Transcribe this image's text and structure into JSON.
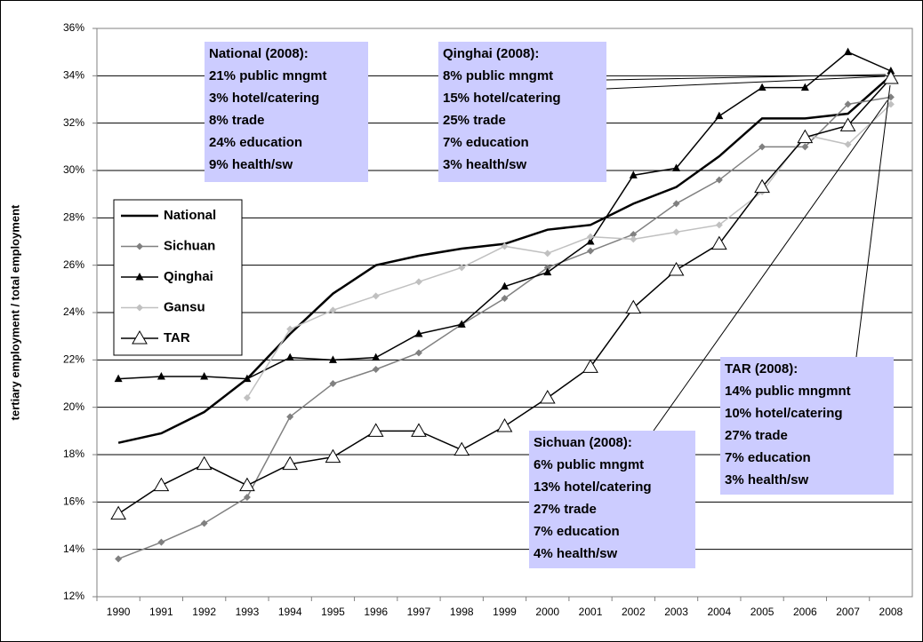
{
  "chart_data": {
    "type": "line",
    "y_label": "tertiary employment / total employment",
    "categories": [
      "1990",
      "1991",
      "1992",
      "1993",
      "1994",
      "1995",
      "1996",
      "1997",
      "1998",
      "1999",
      "2000",
      "2001",
      "2002",
      "2003",
      "2004",
      "2005",
      "2006",
      "2007",
      "2008"
    ],
    "ylim": [
      12,
      36
    ],
    "yticks": [
      {
        "value": 12,
        "label": "12%"
      },
      {
        "value": 14,
        "label": "14%"
      },
      {
        "value": 16,
        "label": "16%"
      },
      {
        "value": 18,
        "label": "18%"
      },
      {
        "value": 20,
        "label": "20%"
      },
      {
        "value": 22,
        "label": "22%"
      },
      {
        "value": 24,
        "label": "24%"
      },
      {
        "value": 26,
        "label": "26%"
      },
      {
        "value": 28,
        "label": "28%"
      },
      {
        "value": 30,
        "label": "30%"
      },
      {
        "value": 32,
        "label": "32%"
      },
      {
        "value": 34,
        "label": "34%"
      },
      {
        "value": 36,
        "label": "36%"
      }
    ],
    "grid": true,
    "series": [
      {
        "name": "National",
        "color": "#000000",
        "marker": "none",
        "values": [
          18.5,
          18.9,
          19.8,
          21.2,
          23.1,
          24.8,
          26.0,
          26.4,
          26.7,
          26.9,
          27.5,
          27.7,
          28.6,
          29.3,
          30.6,
          32.2,
          32.2,
          32.4,
          34.0
        ]
      },
      {
        "name": "Sichuan",
        "color": "#808080",
        "marker": "diamond",
        "values": [
          13.6,
          14.3,
          15.1,
          16.2,
          19.6,
          21.0,
          21.6,
          22.3,
          23.5,
          24.6,
          25.9,
          26.6,
          27.3,
          28.6,
          29.6,
          31.0,
          31.0,
          32.8,
          33.1
        ]
      },
      {
        "name": "Qinghai",
        "color": "#000000",
        "marker": "triangle",
        "values": [
          21.2,
          21.3,
          21.3,
          21.2,
          22.1,
          22.0,
          22.1,
          23.1,
          23.5,
          25.1,
          25.7,
          27.0,
          29.8,
          30.1,
          32.3,
          33.5,
          33.5,
          35.0,
          34.2
        ]
      },
      {
        "name": "Gansu",
        "color": "#c0c0c0",
        "marker": "diamond",
        "values": [
          null,
          null,
          null,
          20.4,
          23.3,
          24.1,
          24.7,
          25.3,
          25.9,
          26.8,
          26.5,
          27.2,
          27.1,
          27.4,
          27.7,
          29.1,
          31.5,
          31.1,
          32.8
        ]
      },
      {
        "name": "TAR",
        "color": "#000000",
        "marker": "triangle-open",
        "values": [
          15.5,
          16.7,
          17.6,
          16.7,
          17.6,
          17.9,
          19.0,
          19.0,
          18.2,
          19.2,
          20.4,
          21.7,
          24.2,
          25.8,
          26.9,
          29.3,
          31.4,
          31.9,
          33.9
        ]
      }
    ],
    "annotations": [
      {
        "title": "National (2008):",
        "lines": [
          "21% public mngmt",
          "3% hotel/catering",
          "8% trade",
          "24% education",
          "9% health/sw"
        ]
      },
      {
        "title": "Qinghai (2008):",
        "lines": [
          "8% public mngmt",
          "15% hotel/catering",
          "25% trade",
          "7% education",
          "3% health/sw"
        ]
      },
      {
        "title": "TAR (2008):",
        "lines": [
          "14% public mngmnt",
          "10% hotel/catering",
          "27% trade",
          "7% education",
          "3% health/sw"
        ]
      },
      {
        "title": "Sichuan (2008):",
        "lines": [
          "6% public mngmt",
          "13% hotel/catering",
          "27% trade",
          "7% education",
          "4% health/sw"
        ]
      }
    ]
  }
}
